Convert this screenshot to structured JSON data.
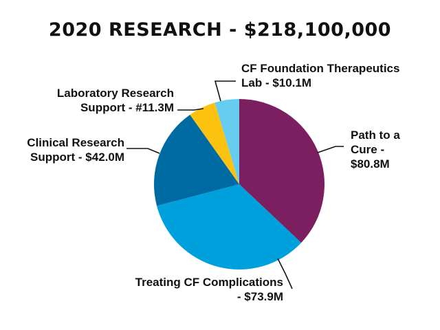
{
  "chart_data": {
    "type": "pie",
    "title": "2020 RESEARCH - $218,100,000",
    "slices": [
      {
        "label_lines": [
          "Path to a",
          "Cure -",
          "$80.8M"
        ],
        "value": 80.8,
        "color": "#7b1f60"
      },
      {
        "label_lines": [
          "Treating CF Complications",
          "- $73.9M"
        ],
        "value": 73.9,
        "color": "#00a0dc"
      },
      {
        "label_lines": [
          "Clinical Research",
          "Support - $42.0M"
        ],
        "value": 42.0,
        "color": "#006aa3"
      },
      {
        "label_lines": [
          "Laboratory Research",
          "Support - #11.3M"
        ],
        "value": 11.3,
        "color": "#fbc20f"
      },
      {
        "label_lines": [
          "CF Foundation Therapeutics",
          "Lab - $10.1M"
        ],
        "value": 10.1,
        "color": "#66cdf0"
      }
    ],
    "start": "12 o'clock",
    "direction": "clockwise",
    "legend": "none (callout labels)"
  }
}
